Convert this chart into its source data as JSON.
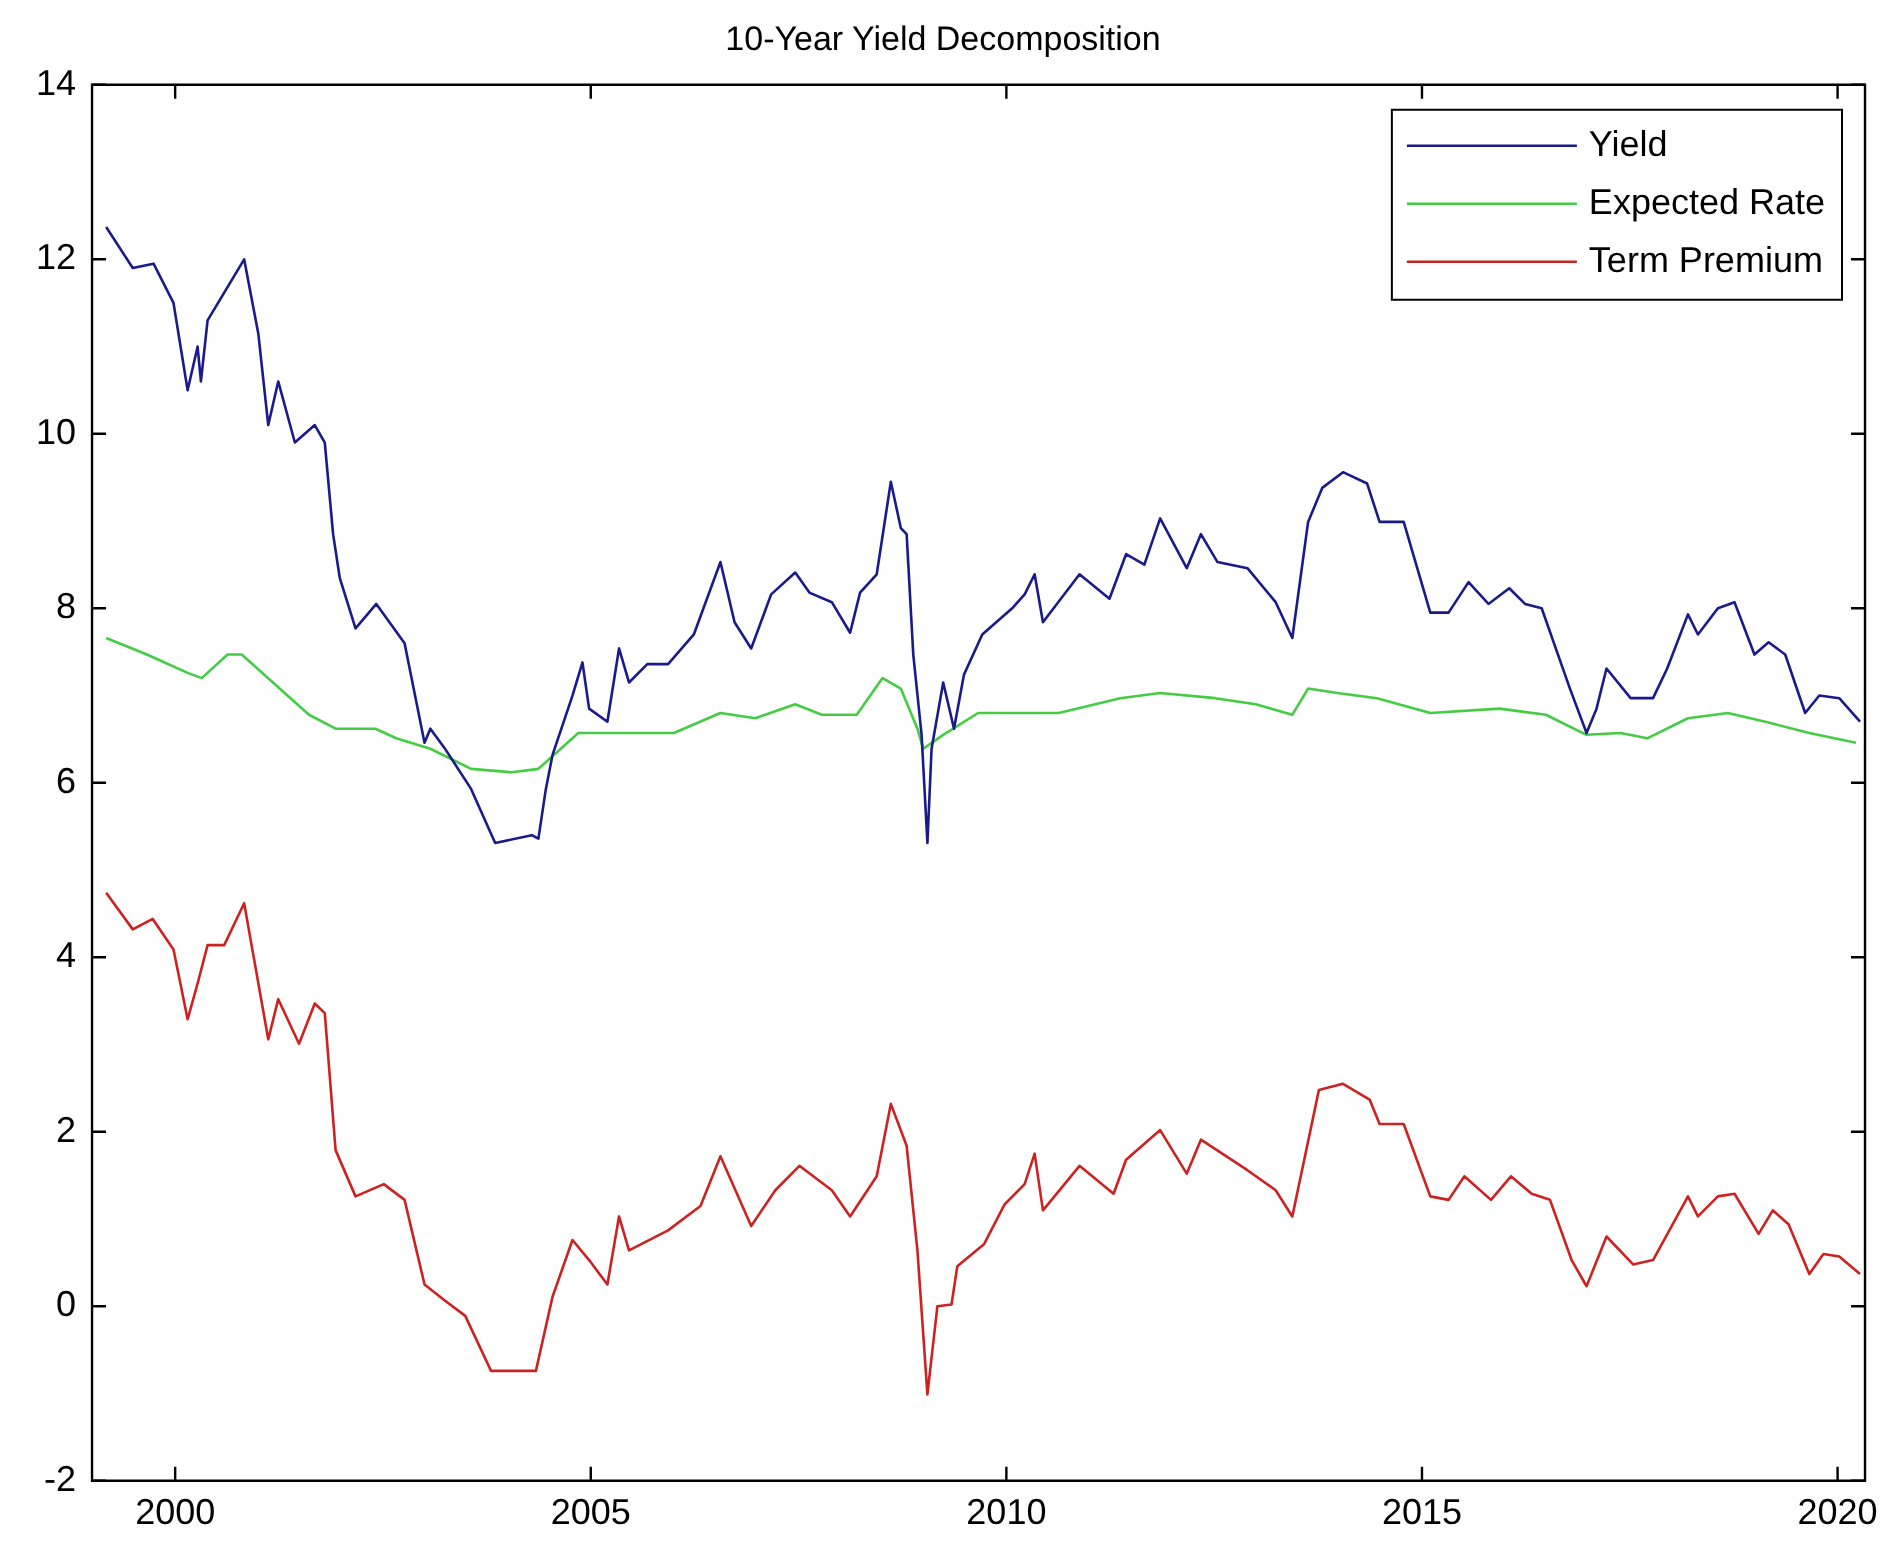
{
  "chart_data": {
    "type": "line",
    "title": "10-Year Yield Decomposition",
    "xlim": [
      1999,
      2020.33
    ],
    "xticks": [
      2000,
      2005,
      2010,
      2015,
      2020
    ],
    "ylim": [
      -2,
      14
    ],
    "yticks": [
      -2,
      0,
      2,
      4,
      6,
      8,
      10,
      12,
      14
    ],
    "grid": false,
    "legend": "top right",
    "marker": "none",
    "line_style": "solid",
    "series": [
      {
        "name": "Yield",
        "color": "#1a1a8c",
        "x": [
          1999.17,
          1999.49,
          1999.74,
          1999.98,
          2000.15,
          2000.27,
          2000.31,
          2000.39,
          2000.83,
          2001.0,
          2001.12,
          2001.24,
          2001.44,
          2001.68,
          2001.8,
          2001.9,
          2001.98,
          2002.17,
          2002.42,
          2002.76,
          2003.0,
          2003.07,
          2003.24,
          2003.56,
          2003.85,
          2004.29,
          2004.37,
          2004.46,
          2004.54,
          2004.78,
          2004.9,
          2004.98,
          2005.2,
          2005.34,
          2005.46,
          2005.68,
          2005.93,
          2006.24,
          2006.56,
          2006.73,
          2006.93,
          2007.17,
          2007.46,
          2007.63,
          2007.9,
          2008.12,
          2008.24,
          2008.44,
          2008.61,
          2008.73,
          2008.8,
          2008.88,
          2008.98,
          2009.05,
          2009.1,
          2009.24,
          2009.37,
          2009.49,
          2009.71,
          2010.07,
          2010.22,
          2010.34,
          2010.44,
          2010.88,
          2011.24,
          2011.44,
          2011.66,
          2011.85,
          2012.17,
          2012.34,
          2012.54,
          2012.9,
          2013.24,
          2013.44,
          2013.63,
          2013.8,
          2014.05,
          2014.34,
          2014.49,
          2014.78,
          2015.1,
          2015.32,
          2015.56,
          2015.8,
          2016.05,
          2016.24,
          2016.44,
          2016.78,
          2016.98,
          2017.1,
          2017.22,
          2017.51,
          2017.78,
          2017.95,
          2018.2,
          2018.32,
          2018.56,
          2018.76,
          2019.0,
          2019.17,
          2019.37,
          2019.61,
          2019.78,
          2020.02,
          2020.27
        ],
        "values": [
          12.37,
          11.9,
          11.95,
          11.5,
          10.5,
          11.0,
          10.6,
          11.3,
          12.0,
          11.15,
          10.1,
          10.6,
          9.9,
          10.1,
          9.9,
          8.85,
          8.35,
          7.77,
          8.05,
          7.6,
          6.46,
          6.62,
          6.4,
          5.93,
          5.31,
          5.4,
          5.36,
          5.93,
          6.32,
          7.0,
          7.38,
          6.85,
          6.7,
          7.54,
          7.15,
          7.36,
          7.36,
          7.7,
          8.53,
          7.84,
          7.54,
          8.16,
          8.41,
          8.18,
          8.07,
          7.72,
          8.18,
          8.39,
          9.45,
          8.92,
          8.85,
          7.47,
          6.55,
          5.31,
          6.39,
          7.15,
          6.62,
          7.24,
          7.7,
          8.0,
          8.16,
          8.39,
          7.84,
          8.39,
          8.11,
          8.62,
          8.5,
          9.03,
          8.46,
          8.85,
          8.53,
          8.46,
          8.07,
          7.66,
          8.99,
          9.38,
          9.56,
          9.43,
          8.99,
          8.99,
          7.95,
          7.95,
          8.3,
          8.05,
          8.23,
          8.05,
          8.0,
          7.08,
          6.57,
          6.85,
          7.31,
          6.97,
          6.97,
          7.31,
          7.93,
          7.7,
          8.0,
          8.07,
          7.47,
          7.61,
          7.47,
          6.8,
          7.0,
          6.97,
          6.7
        ]
      },
      {
        "name": "Expected Rate",
        "color": "#44cc44",
        "x": [
          1999.17,
          1999.66,
          2000.15,
          2000.32,
          2000.63,
          2000.8,
          2001.2,
          2001.61,
          2001.93,
          2002.41,
          2002.66,
          2003.07,
          2003.56,
          2004.05,
          2004.37,
          2004.85,
          2005.34,
          2006.0,
          2006.56,
          2006.98,
          2007.46,
          2007.78,
          2008.2,
          2008.51,
          2008.73,
          2008.93,
          2009.0,
          2009.24,
          2009.66,
          2010.63,
          2011.37,
          2011.85,
          2012.51,
          2013.0,
          2013.44,
          2013.63,
          2013.98,
          2014.46,
          2015.1,
          2015.93,
          2016.49,
          2016.98,
          2017.39,
          2017.71,
          2018.2,
          2018.68,
          2019.17,
          2019.66,
          2020.22
        ],
        "values": [
          7.66,
          7.47,
          7.26,
          7.2,
          7.47,
          7.47,
          7.13,
          6.78,
          6.62,
          6.62,
          6.51,
          6.39,
          6.16,
          6.12,
          6.16,
          6.57,
          6.57,
          6.57,
          6.8,
          6.74,
          6.9,
          6.78,
          6.78,
          7.2,
          7.08,
          6.62,
          6.39,
          6.55,
          6.8,
          6.8,
          6.97,
          7.03,
          6.97,
          6.9,
          6.78,
          7.08,
          7.03,
          6.97,
          6.8,
          6.85,
          6.78,
          6.55,
          6.57,
          6.51,
          6.74,
          6.8,
          6.69,
          6.57,
          6.46
        ]
      },
      {
        "name": "Term Premium",
        "color": "#cc2222",
        "x": [
          1999.17,
          1999.49,
          1999.73,
          1999.98,
          2000.15,
          2000.27,
          2000.39,
          2000.59,
          2000.83,
          2001.12,
          2001.24,
          2001.49,
          2001.68,
          2001.8,
          2001.93,
          2002.17,
          2002.51,
          2002.76,
          2003.0,
          2003.24,
          2003.49,
          2003.8,
          2004.34,
          2004.54,
          2004.78,
          2004.98,
          2005.2,
          2005.34,
          2005.46,
          2005.93,
          2006.32,
          2006.56,
          2006.93,
          2007.22,
          2007.51,
          2007.9,
          2008.12,
          2008.44,
          2008.61,
          2008.8,
          2008.93,
          2009.05,
          2009.17,
          2009.34,
          2009.41,
          2009.73,
          2009.98,
          2010.22,
          2010.34,
          2010.44,
          2010.88,
          2011.29,
          2011.44,
          2011.85,
          2012.17,
          2012.34,
          2012.9,
          2013.24,
          2013.44,
          2013.76,
          2014.05,
          2014.37,
          2014.49,
          2014.78,
          2015.1,
          2015.32,
          2015.51,
          2015.83,
          2016.07,
          2016.32,
          2016.54,
          2016.8,
          2016.98,
          2017.22,
          2017.54,
          2017.78,
          2018.2,
          2018.32,
          2018.56,
          2018.76,
          2019.05,
          2019.22,
          2019.41,
          2019.66,
          2019.83,
          2020.02,
          2020.27
        ],
        "values": [
          4.74,
          4.32,
          4.44,
          4.09,
          3.29,
          3.7,
          4.14,
          4.14,
          4.62,
          3.06,
          3.52,
          3.01,
          3.47,
          3.36,
          1.79,
          1.26,
          1.4,
          1.22,
          0.25,
          0.07,
          -0.11,
          -0.74,
          -0.74,
          0.11,
          0.76,
          0.53,
          0.25,
          1.03,
          0.64,
          0.87,
          1.15,
          1.72,
          0.92,
          1.33,
          1.61,
          1.33,
          1.03,
          1.49,
          2.32,
          1.84,
          0.64,
          -1.01,
          0,
          0.02,
          0.46,
          0.71,
          1.17,
          1.4,
          1.75,
          1.1,
          1.61,
          1.29,
          1.68,
          2.02,
          1.52,
          1.91,
          1.56,
          1.33,
          1.03,
          2.48,
          2.55,
          2.37,
          2.09,
          2.09,
          1.26,
          1.22,
          1.49,
          1.22,
          1.49,
          1.29,
          1.22,
          0.53,
          0.23,
          0.8,
          0.48,
          0.53,
          1.26,
          1.03,
          1.26,
          1.29,
          0.83,
          1.1,
          0.94,
          0.37,
          0.6,
          0.57,
          0.37
        ]
      }
    ]
  }
}
